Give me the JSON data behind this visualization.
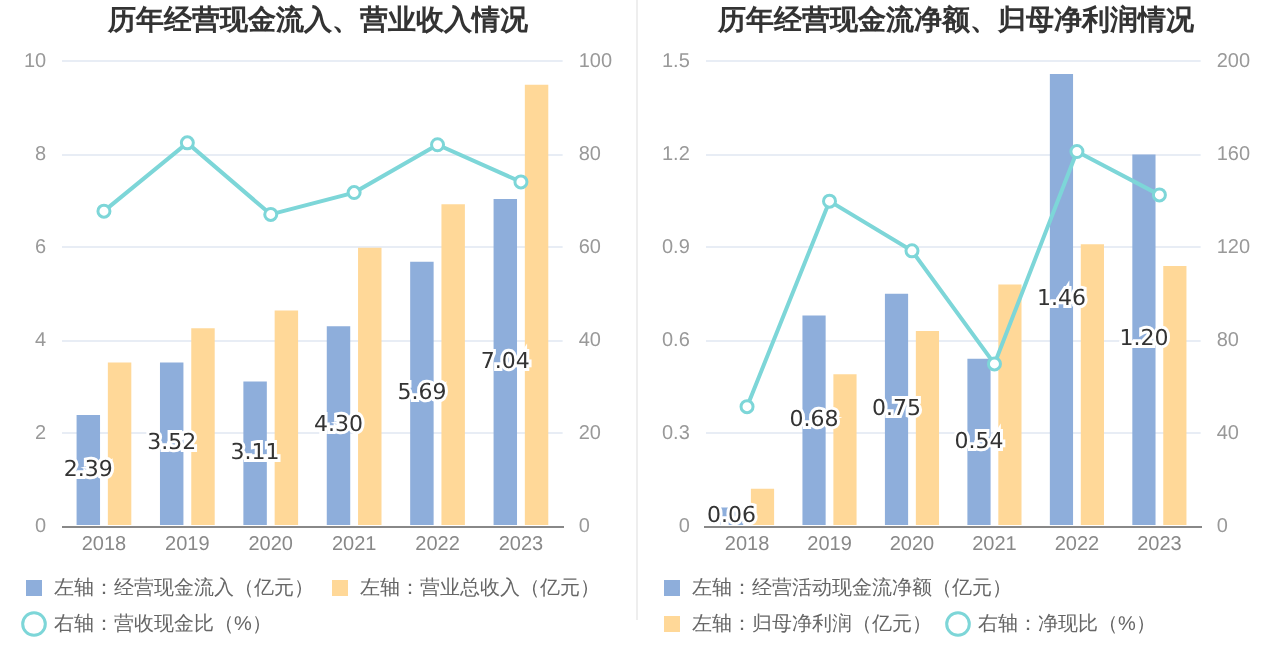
{
  "chart_data": [
    {
      "type": "bar",
      "title": "历年经营现金流入、营业收入情况",
      "categories": [
        "2018",
        "2019",
        "2020",
        "2021",
        "2022",
        "2023"
      ],
      "series": [
        {
          "name": "左轴：经营现金流入（亿元）",
          "color": "#8eaedb",
          "values": [
            2.39,
            3.52,
            3.11,
            4.3,
            5.69,
            7.04
          ],
          "value_labels": [
            "2.39",
            "3.52",
            "3.11",
            "4.30",
            "5.69",
            "7.04"
          ]
        },
        {
          "name": "左轴：营业总收入（亿元）",
          "color": "#ffd898",
          "values": [
            3.52,
            4.26,
            4.64,
            5.99,
            6.93,
            9.5
          ]
        },
        {
          "name": "右轴：营收现金比（%）",
          "color": "#7dd6d8",
          "type": "line",
          "axis": "y2",
          "values": [
            67.8,
            82.5,
            67.1,
            71.8,
            82.1,
            74.1
          ]
        }
      ],
      "ylim": [
        0,
        10
      ],
      "yticks": [
        0,
        2,
        4,
        6,
        8,
        10
      ],
      "y2lim": [
        0,
        100
      ],
      "y2ticks": [
        0,
        20,
        40,
        60,
        80,
        100
      ],
      "grid": "y",
      "legend": "bottom",
      "marker": "circle"
    },
    {
      "type": "bar",
      "title": "历年经营现金流净额、归母净利润情况",
      "categories": [
        "2018",
        "2019",
        "2020",
        "2021",
        "2022",
        "2023"
      ],
      "series": [
        {
          "name": "左轴：经营活动现金流净额（亿元）",
          "color": "#8eaedb",
          "values": [
            0.06,
            0.68,
            0.75,
            0.54,
            1.46,
            1.2
          ],
          "value_labels": [
            "0.06",
            "0.68",
            "0.75",
            "0.54",
            "1.46",
            "1.20"
          ]
        },
        {
          "name": "左轴：归母净利润（亿元）",
          "color": "#ffd898",
          "values": [
            0.12,
            0.49,
            0.63,
            0.78,
            0.91,
            0.84
          ]
        },
        {
          "name": "右轴：净现比（%）",
          "color": "#7dd6d8",
          "type": "line",
          "axis": "y2",
          "values": [
            51.4,
            139.9,
            118.5,
            69.8,
            161.3,
            142.6
          ]
        }
      ],
      "ylim": [
        0,
        1.5
      ],
      "yticks": [
        0,
        0.3,
        0.6,
        0.9,
        1.2,
        1.5
      ],
      "y2lim": [
        0,
        200
      ],
      "y2ticks": [
        0,
        40,
        80,
        120,
        160,
        200
      ],
      "grid": "y",
      "legend": "bottom",
      "marker": "circle"
    }
  ]
}
